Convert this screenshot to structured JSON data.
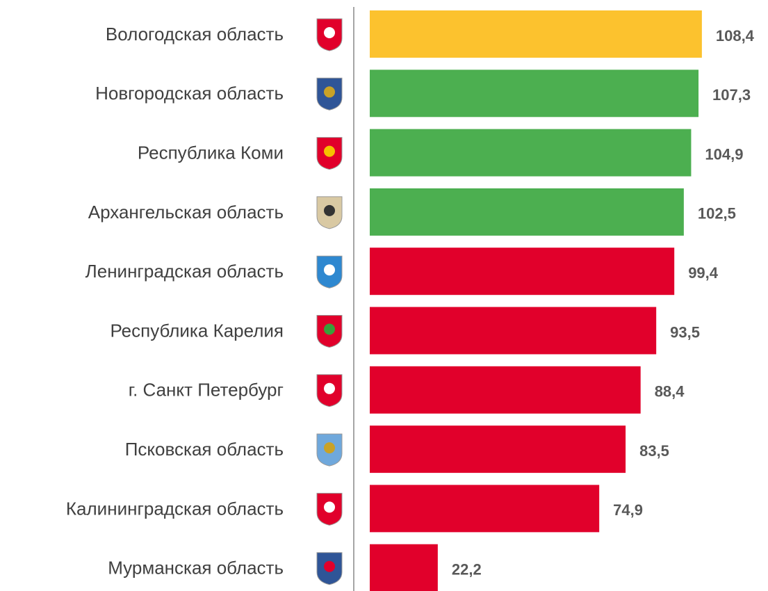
{
  "chart_data": {
    "type": "bar",
    "orientation": "horizontal",
    "categories": [
      "Вологодская область",
      "Новгородская область",
      "Республика Коми",
      "Архангельская область",
      "Ленинградская область",
      "Республика Карелия",
      "г. Санкт Петербург",
      "Псковская область",
      "Калининградская  область",
      "Мурманская область"
    ],
    "values": [
      108.4,
      107.3,
      104.9,
      102.5,
      99.4,
      93.5,
      88.4,
      83.5,
      74.9,
      22.2
    ],
    "value_labels": [
      "108,4",
      "107,3",
      "104,9",
      "102,5",
      "99,4",
      "93,5",
      "88,4",
      "83,5",
      "74,9",
      "22,2"
    ],
    "colors": [
      "#fcc22e",
      "#4caf50",
      "#4caf50",
      "#4caf50",
      "#e1002b",
      "#e1002b",
      "#e1002b",
      "#e1002b",
      "#e1002b",
      "#e1002b"
    ],
    "xlim": [
      0,
      120
    ]
  }
}
